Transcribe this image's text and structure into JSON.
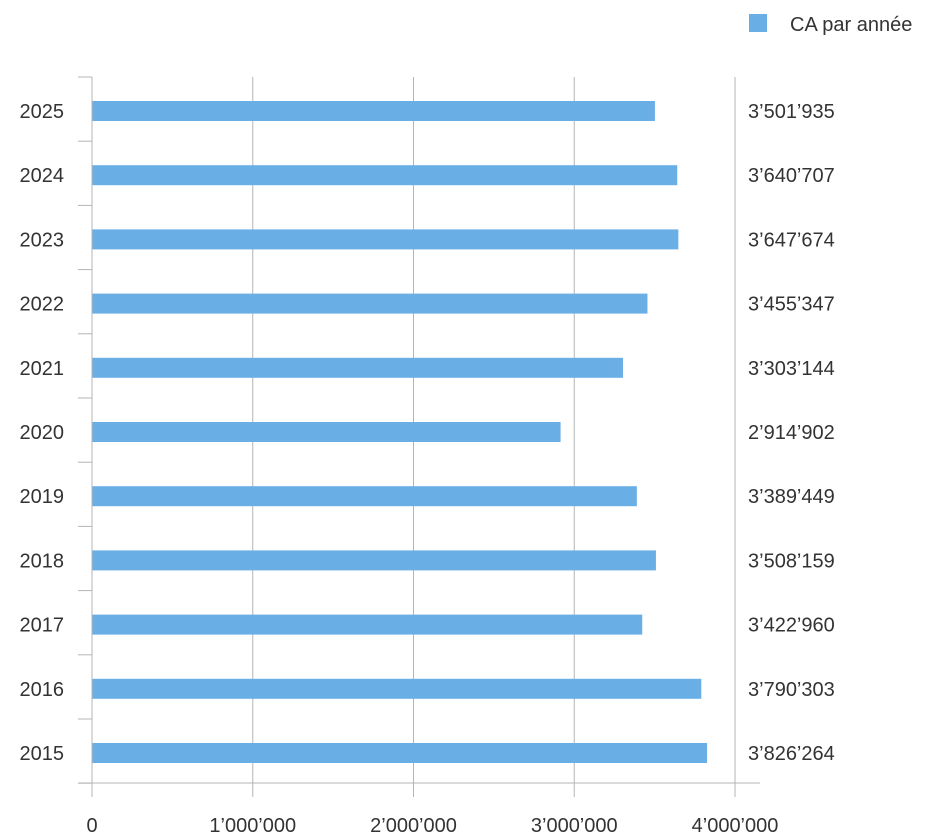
{
  "chart_data": {
    "type": "bar",
    "orientation": "horizontal",
    "categories": [
      "2025",
      "2024",
      "2023",
      "2022",
      "2021",
      "2020",
      "2019",
      "2018",
      "2017",
      "2016",
      "2015"
    ],
    "series": [
      {
        "name": "CA par année",
        "values": [
          3501935,
          3640707,
          3647674,
          3455347,
          3303144,
          2914902,
          3389449,
          3508159,
          3422960,
          3790303,
          3826264
        ],
        "value_labels": [
          "3’501’935",
          "3’640’707",
          "3’647’674",
          "3’455’347",
          "3’303’144",
          "2’914’902",
          "3’389’449",
          "3’508’159",
          "3’422’960",
          "3’790’303",
          "3’826’264"
        ]
      }
    ],
    "xlim": [
      0,
      4000000
    ],
    "x_ticks": [
      0,
      1000000,
      2000000,
      3000000,
      4000000
    ],
    "x_tick_labels": [
      "0",
      "1’000’000",
      "2’000’000",
      "3’000’000",
      "4’000’000"
    ],
    "grid": "vertical",
    "legend": "top-right",
    "bar_color": "#6aaee6",
    "grid_color": "#b5b5b5",
    "text_color": "#333333"
  }
}
